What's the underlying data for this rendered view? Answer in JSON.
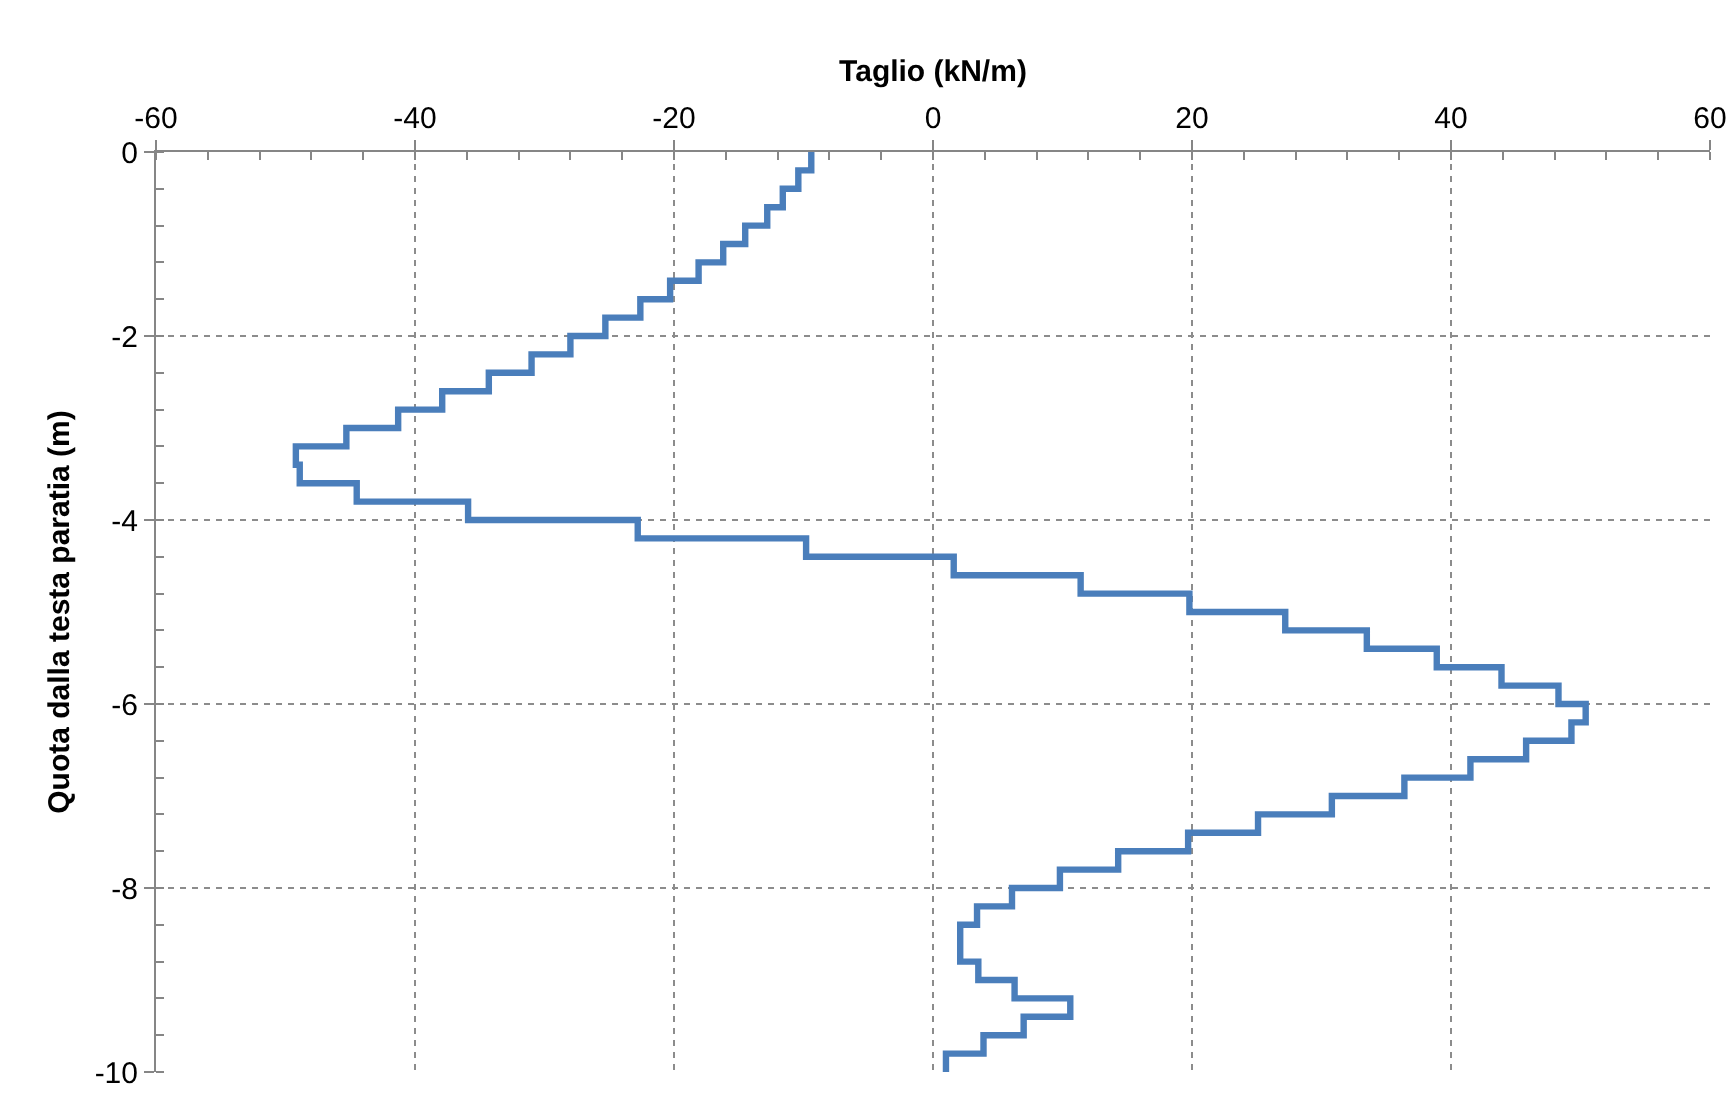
{
  "chart_data": {
    "type": "line",
    "xlabel": "Taglio (kN/m)",
    "ylabel": "Quota dalla testa paratia (m)",
    "xlim": [
      -60,
      60
    ],
    "xticks": [
      -60,
      -40,
      -20,
      0,
      20,
      40,
      60
    ],
    "ylim": [
      -10,
      0
    ],
    "yticks": [
      -10,
      -8,
      -6,
      -4,
      -2,
      0
    ],
    "grid": true,
    "marker": "none",
    "line_style": "solid",
    "series": [
      {
        "color": "#4a7ebb",
        "x": [
          -9.4,
          -9.4,
          -10.4,
          -10.4,
          -11.6,
          -11.6,
          -12.8,
          -12.8,
          -14.5,
          -14.5,
          -16.2,
          -16.2,
          -18.1,
          -18.1,
          -20.3,
          -20.3,
          -22.6,
          -22.6,
          -25.3,
          -25.3,
          -28.0,
          -28.0,
          -31.0,
          -31.0,
          -34.3,
          -34.3,
          -37.9,
          -37.9,
          -41.3,
          -41.3,
          -45.3,
          -45.3,
          -49.2,
          -49.2,
          -48.9,
          -48.9,
          -44.5,
          -44.5,
          -35.9,
          -35.9,
          -22.8,
          -22.8,
          -9.8,
          -9.8,
          1.6,
          1.6,
          11.4,
          11.4,
          19.8,
          19.8,
          27.2,
          27.2,
          33.5,
          33.5,
          38.9,
          38.9,
          43.9,
          43.9,
          48.3,
          48.3,
          50.4,
          50.4,
          49.3,
          49.3,
          45.8,
          45.8,
          41.5,
          41.5,
          36.4,
          36.4,
          30.8,
          30.8,
          25.1,
          25.1,
          19.7,
          19.7,
          14.3,
          14.3,
          9.8,
          9.8,
          6.1,
          6.1,
          3.4,
          3.4,
          2.1,
          2.1,
          2.1,
          2.1,
          3.5,
          3.5,
          6.3,
          6.3,
          10.6,
          10.6,
          7.0,
          7.0,
          3.9,
          3.9,
          1.0,
          1.0
        ],
        "values": [
          0,
          -0.2,
          -0.2,
          -0.4,
          -0.4,
          -0.6,
          -0.6,
          -0.8,
          -0.8,
          -1.0,
          -1.0,
          -1.2,
          -1.2,
          -1.4,
          -1.4,
          -1.6,
          -1.6,
          -1.8,
          -1.8,
          -2.0,
          -2.0,
          -2.2,
          -2.2,
          -2.4,
          -2.4,
          -2.6,
          -2.6,
          -2.8,
          -2.8,
          -3.0,
          -3.0,
          -3.2,
          -3.2,
          -3.4,
          -3.4,
          -3.6,
          -3.6,
          -3.8,
          -3.8,
          -4.0,
          -4.0,
          -4.2,
          -4.2,
          -4.4,
          -4.4,
          -4.6,
          -4.6,
          -4.8,
          -4.8,
          -5.0,
          -5.0,
          -5.2,
          -5.2,
          -5.4,
          -5.4,
          -5.6,
          -5.6,
          -5.8,
          -5.8,
          -6.0,
          -6.0,
          -6.2,
          -6.2,
          -6.4,
          -6.4,
          -6.6,
          -6.6,
          -6.8,
          -6.8,
          -7.0,
          -7.0,
          -7.2,
          -7.2,
          -7.4,
          -7.4,
          -7.6,
          -7.6,
          -7.8,
          -7.8,
          -8.0,
          -8.0,
          -8.2,
          -8.2,
          -8.4,
          -8.4,
          -8.6,
          -8.6,
          -8.8,
          -8.8,
          -9.0,
          -9.0,
          -9.2,
          -9.2,
          -9.4,
          -9.4,
          -9.6,
          -9.6,
          -9.8,
          -9.8,
          -10.0
        ]
      }
    ]
  }
}
